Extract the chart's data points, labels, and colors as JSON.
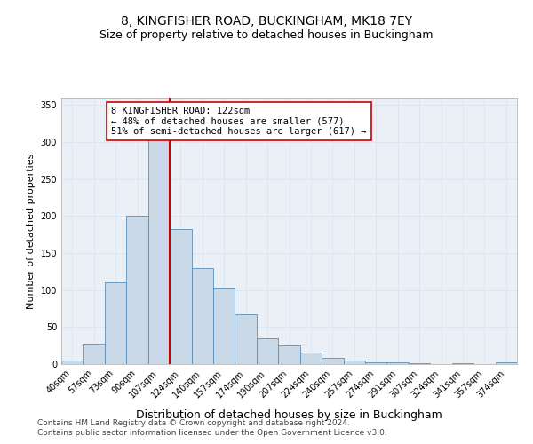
{
  "title": "8, KINGFISHER ROAD, BUCKINGHAM, MK18 7EY",
  "subtitle": "Size of property relative to detached houses in Buckingham",
  "xlabel": "Distribution of detached houses by size in Buckingham",
  "ylabel": "Number of detached properties",
  "categories": [
    "40sqm",
    "57sqm",
    "73sqm",
    "90sqm",
    "107sqm",
    "124sqm",
    "140sqm",
    "157sqm",
    "174sqm",
    "190sqm",
    "207sqm",
    "224sqm",
    "240sqm",
    "257sqm",
    "274sqm",
    "291sqm",
    "307sqm",
    "324sqm",
    "341sqm",
    "357sqm",
    "374sqm"
  ],
  "values": [
    5,
    28,
    110,
    200,
    330,
    182,
    130,
    103,
    67,
    35,
    25,
    16,
    8,
    5,
    3,
    3,
    1,
    0,
    1,
    0,
    2
  ],
  "bar_color": "#c9d9e8",
  "bar_edgecolor": "#5b8db8",
  "vline_idx": 4.5,
  "vline_color": "#cc0000",
  "annotation_text": "8 KINGFISHER ROAD: 122sqm\n← 48% of detached houses are smaller (577)\n51% of semi-detached houses are larger (617) →",
  "annotation_box_edgecolor": "#cc0000",
  "annotation_box_facecolor": "#ffffff",
  "ylim": [
    0,
    360
  ],
  "yticks": [
    0,
    50,
    100,
    150,
    200,
    250,
    300,
    350
  ],
  "grid_color": "#dce6f1",
  "background_color": "#eaf0f6",
  "footer1": "Contains HM Land Registry data © Crown copyright and database right 2024.",
  "footer2": "Contains public sector information licensed under the Open Government Licence v3.0.",
  "title_fontsize": 10,
  "subtitle_fontsize": 9,
  "xlabel_fontsize": 9,
  "ylabel_fontsize": 8,
  "tick_fontsize": 7,
  "annotation_fontsize": 7.5,
  "footer_fontsize": 6.5
}
